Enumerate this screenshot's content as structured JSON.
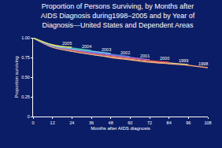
{
  "chart_data": {
    "type": "line",
    "title": "Proportion of Persons Surviving, by Months after\nAIDS Diagnosis during1998–2005 and by Year of\nDiagnosis—United States and Dependent Areas",
    "x_label": "Months after AIDS diagnosis",
    "y_label": "Proportion surviving",
    "x": [
      0,
      12,
      24,
      36,
      48,
      60,
      72,
      84,
      96,
      108
    ],
    "series": [
      {
        "name": "1998",
        "color": "#f0a070",
        "values": [
          1.0,
          0.88,
          0.83,
          0.79,
          0.75,
          0.72,
          0.69,
          0.67,
          0.65,
          0.62
        ]
      },
      {
        "name": "1999",
        "color": "#d8c08a",
        "values": [
          1.0,
          0.88,
          0.83,
          0.79,
          0.76,
          0.73,
          0.7,
          0.68,
          0.66,
          null
        ]
      },
      {
        "name": "2000",
        "color": "#e05050",
        "values": [
          1.0,
          0.89,
          0.84,
          0.8,
          0.77,
          0.74,
          0.71,
          0.69,
          null,
          null
        ]
      },
      {
        "name": "2001",
        "color": "#b070d0",
        "values": [
          1.0,
          0.89,
          0.85,
          0.81,
          0.78,
          0.75,
          0.72,
          null,
          null,
          null
        ]
      },
      {
        "name": "2002",
        "color": "#5080e0",
        "values": [
          1.0,
          0.9,
          0.86,
          0.82,
          0.79,
          0.76,
          null,
          null,
          null,
          null
        ]
      },
      {
        "name": "2003",
        "color": "#80c8f0",
        "values": [
          1.0,
          0.9,
          0.86,
          0.83,
          0.8,
          null,
          null,
          null,
          null,
          null
        ]
      },
      {
        "name": "2004",
        "color": "#40b0a0",
        "values": [
          1.0,
          0.91,
          0.87,
          0.84,
          null,
          null,
          null,
          null,
          null,
          null
        ]
      },
      {
        "name": "2005",
        "color": "#f0e060",
        "values": [
          1.0,
          0.91,
          0.88,
          null,
          null,
          null,
          null,
          null,
          null,
          null
        ]
      }
    ],
    "xlim": [
      0,
      108
    ],
    "xticks": [
      0,
      12,
      24,
      36,
      48,
      60,
      72,
      84,
      96,
      108
    ],
    "ylim": [
      0,
      1
    ],
    "yticks": [
      0,
      {
        "value": 0.25,
        "label": "0.25"
      },
      {
        "value": 0.5,
        "label": "0.50"
      },
      {
        "value": 0.75,
        "label": "0.75"
      },
      {
        "value": 1,
        "label": "1.00"
      }
    ],
    "grid": false
  }
}
